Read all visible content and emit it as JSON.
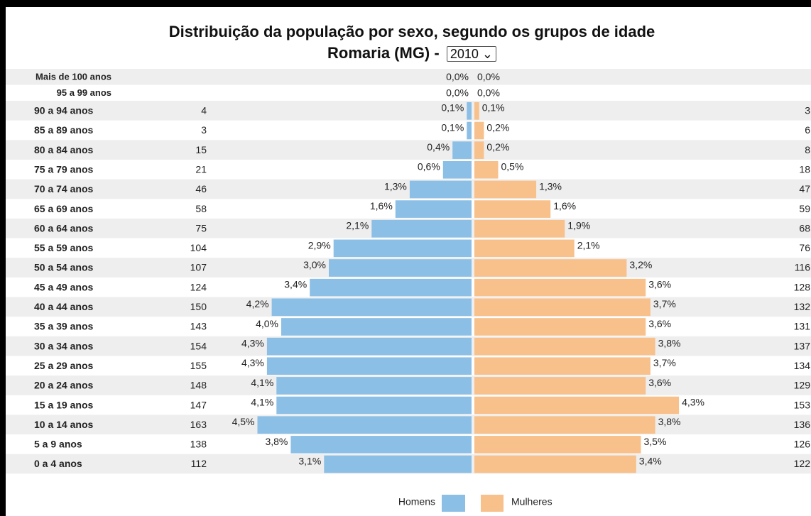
{
  "chart_data": {
    "type": "pyramid",
    "title": "Distribuição da população por sexo, segundo os grupos de idade",
    "subtitle": "Romaria (MG) -",
    "year": "2010",
    "categories": [
      "Mais de 100 anos",
      "95 a 99 anos",
      "90 a 94 anos",
      "85 a 89 anos",
      "80 a 84 anos",
      "75 a 79 anos",
      "70 a 74 anos",
      "65 a 69 anos",
      "60 a 64 anos",
      "55 a 59 anos",
      "50 a 54 anos",
      "45 a 49 anos",
      "40 a 44 anos",
      "35 a 39 anos",
      "30 a 34 anos",
      "25 a 29 anos",
      "20 a 24 anos",
      "15 a 19 anos",
      "10 a 14 anos",
      "5 a 9 anos",
      "0 a 4 anos"
    ],
    "series": [
      {
        "name": "Homens",
        "color": "#8bbfe6",
        "values": [
          0.0,
          0.0,
          0.1,
          0.1,
          0.4,
          0.6,
          1.3,
          1.6,
          2.1,
          2.9,
          3.0,
          3.4,
          4.2,
          4.0,
          4.3,
          4.3,
          4.1,
          4.1,
          4.5,
          3.8,
          3.1
        ],
        "value_labels": [
          "0,0%",
          "0,0%",
          "0,1%",
          "0,1%",
          "0,4%",
          "0,6%",
          "1,3%",
          "1,6%",
          "2,1%",
          "2,9%",
          "3,0%",
          "3,4%",
          "4,2%",
          "4,0%",
          "4,3%",
          "4,3%",
          "4,1%",
          "4,1%",
          "4,5%",
          "3,8%",
          "3,1%"
        ],
        "counts": [
          null,
          null,
          4,
          3,
          15,
          21,
          46,
          58,
          75,
          104,
          107,
          124,
          150,
          143,
          154,
          155,
          148,
          147,
          163,
          138,
          112
        ]
      },
      {
        "name": "Mulheres",
        "color": "#f8c08a",
        "values": [
          0.0,
          0.0,
          0.1,
          0.2,
          0.2,
          0.5,
          1.3,
          1.6,
          1.9,
          2.1,
          3.2,
          3.6,
          3.7,
          3.6,
          3.8,
          3.7,
          3.6,
          4.3,
          3.8,
          3.5,
          3.4
        ],
        "value_labels": [
          "0,0%",
          "0,0%",
          "0,1%",
          "0,2%",
          "0,2%",
          "0,5%",
          "1,3%",
          "1,6%",
          "1,9%",
          "2,1%",
          "3,2%",
          "3,6%",
          "3,7%",
          "3,6%",
          "3,8%",
          "3,7%",
          "3,6%",
          "4,3%",
          "3,8%",
          "3,5%",
          "3,4%"
        ],
        "counts": [
          null,
          null,
          3,
          6,
          8,
          18,
          47,
          59,
          68,
          76,
          116,
          128,
          132,
          131,
          137,
          134,
          129,
          153,
          136,
          126,
          122
        ]
      }
    ]
  }
}
